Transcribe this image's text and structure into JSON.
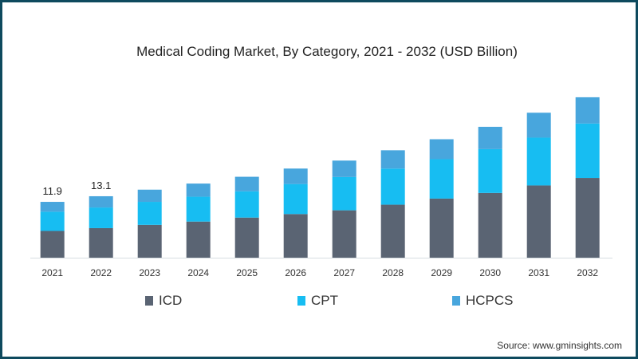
{
  "chart_data": {
    "type": "bar",
    "stacked": true,
    "title": "Medical Coding Market, By Category, 2021 - 2032 (USD Billion)",
    "xlabel": "",
    "ylabel": "",
    "ylim": [
      0,
      36
    ],
    "grid": false,
    "legend_placement": "bottom",
    "categories": [
      "2021",
      "2022",
      "2023",
      "2024",
      "2025",
      "2026",
      "2027",
      "2028",
      "2029",
      "2030",
      "2031",
      "2032"
    ],
    "series": [
      {
        "name": "ICD",
        "color": "#5a6473",
        "values": [
          5.7,
          6.3,
          7.0,
          7.7,
          8.55,
          9.3,
          10.1,
          11.3,
          12.6,
          13.8,
          15.4,
          17.0
        ]
      },
      {
        "name": "CPT",
        "color": "#17bdf2",
        "values": [
          4.1,
          4.4,
          4.9,
          5.3,
          5.6,
          6.4,
          7.1,
          7.7,
          8.4,
          9.35,
          10.2,
          11.6
        ]
      },
      {
        "name": "HCPCS",
        "color": "#48a6dd",
        "values": [
          2.1,
          2.4,
          2.6,
          2.8,
          3.1,
          3.3,
          3.5,
          3.9,
          4.25,
          4.75,
          5.3,
          5.6
        ]
      }
    ],
    "annotations": [
      {
        "category": "2021",
        "text": "11.9"
      },
      {
        "category": "2022",
        "text": "13.1"
      }
    ]
  },
  "source": "Source: www.gminsights.com"
}
